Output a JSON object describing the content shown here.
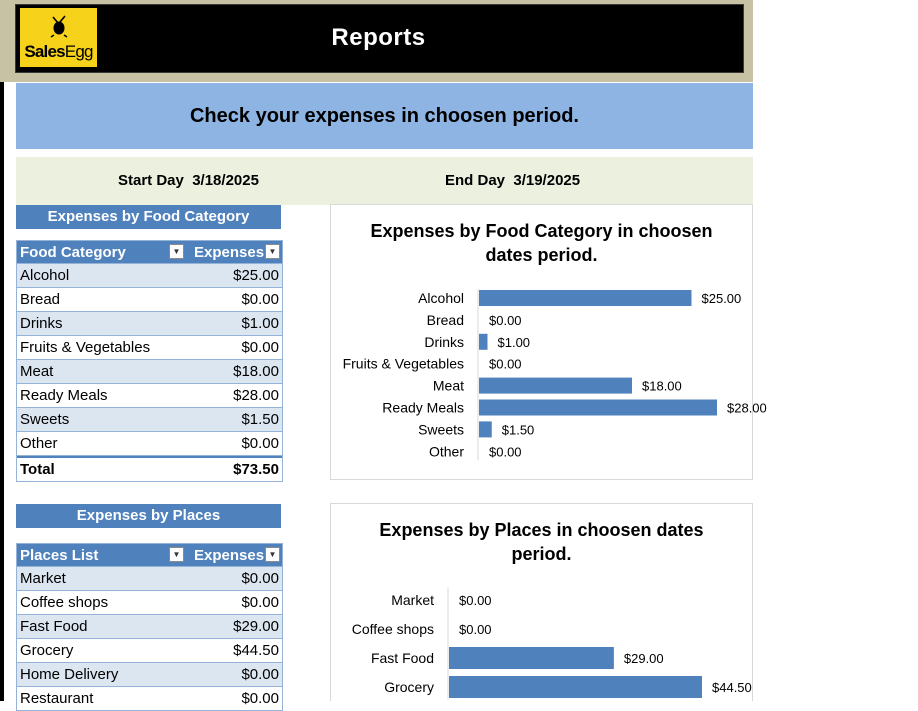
{
  "header": {
    "logo_text_sales": "Sales",
    "logo_text_egg": "Egg",
    "title": "Reports"
  },
  "subtitle": "Check your expenses in choosen period.",
  "dates": {
    "start_label": "Start Day",
    "start_value": "3/18/2025",
    "end_label": "End Day",
    "end_value": "3/19/2025"
  },
  "food_section": {
    "header": "Expenses by Food Category",
    "col1": "Food Category",
    "col2": "Expenses",
    "rows": [
      {
        "name": "Alcohol",
        "value": "$25.00"
      },
      {
        "name": "Bread",
        "value": "$0.00"
      },
      {
        "name": "Drinks",
        "value": "$1.00"
      },
      {
        "name": "Fruits & Vegetables",
        "value": "$0.00"
      },
      {
        "name": "Meat",
        "value": "$18.00"
      },
      {
        "name": "Ready Meals",
        "value": "$28.00"
      },
      {
        "name": "Sweets",
        "value": "$1.50"
      },
      {
        "name": "Other",
        "value": "$0.00"
      }
    ],
    "total_label": "Total",
    "total_value": "$73.50"
  },
  "places_section": {
    "header": "Expenses by Places",
    "col1": "Places List",
    "col2": "Expenses",
    "rows": [
      {
        "name": "Market",
        "value": "$0.00"
      },
      {
        "name": "Coffee shops",
        "value": "$0.00"
      },
      {
        "name": "Fast Food",
        "value": "$29.00"
      },
      {
        "name": "Grocery",
        "value": "$44.50"
      },
      {
        "name": "Home Delivery",
        "value": "$0.00"
      },
      {
        "name": "Restaurant",
        "value": "$0.00"
      }
    ]
  },
  "chart_data": [
    {
      "type": "bar",
      "orientation": "horizontal",
      "title_line1": "Expenses by Food Category in choosen",
      "title_line2": "dates period.",
      "categories": [
        "Alcohol",
        "Bread",
        "Drinks",
        "Fruits & Vegetables",
        "Meat",
        "Ready Meals",
        "Sweets",
        "Other"
      ],
      "values": [
        25.0,
        0.0,
        1.0,
        0.0,
        18.0,
        28.0,
        1.5,
        0.0
      ],
      "labels": [
        "$25.00",
        "$0.00",
        "$1.00",
        "$0.00",
        "$18.00",
        "$28.00",
        "$1.50",
        "$0.00"
      ],
      "xlim": [
        0,
        28
      ],
      "color": "#4f81bd"
    },
    {
      "type": "bar",
      "orientation": "horizontal",
      "title_line1": "Expenses by Places in choosen dates",
      "title_line2": "period.",
      "categories": [
        "Market",
        "Coffee shops",
        "Fast Food",
        "Grocery"
      ],
      "values": [
        0.0,
        0.0,
        29.0,
        44.5
      ],
      "labels": [
        "$0.00",
        "$0.00",
        "$29.00",
        "$44.50"
      ],
      "xlim": [
        0,
        44.5
      ],
      "color": "#4f81bd"
    }
  ]
}
